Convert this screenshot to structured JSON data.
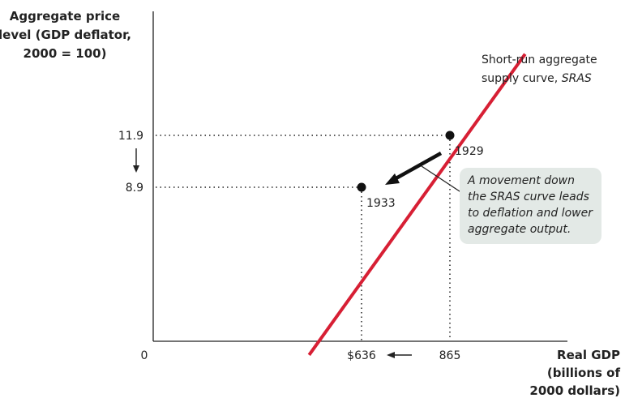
{
  "chart_data": {
    "type": "line",
    "ylabel_lines": [
      "Aggregate price",
      "level (GDP deflator,",
      "2000 = 100)"
    ],
    "xlabel_lines": [
      "Real GDP",
      "(billions of",
      "2000 dollars)"
    ],
    "origin_label": "0",
    "series": [
      {
        "name_lines": [
          "Short-run aggregate",
          "supply curve, ",
          "SRAS"
        ],
        "color": "#d71f34",
        "x": [
          500,
          1060
        ],
        "y": [
          -0.8,
          16.6
        ]
      }
    ],
    "points": [
      {
        "label": "1929",
        "x": 865,
        "y": 11.9
      },
      {
        "label": "1933",
        "x": 636,
        "y": 8.9
      }
    ],
    "x_ticks": [
      "$636",
      "865"
    ],
    "y_ticks": [
      "11.9",
      "8.9"
    ],
    "xlim": [
      0,
      1100
    ],
    "ylim": [
      -7.5,
      18.5
    ],
    "annotation_lines": [
      "A movement down",
      "the SRAS curve leads",
      "to deflation and lower",
      "aggregate output."
    ],
    "grid": false,
    "colors": {
      "curve": "#d71f34",
      "callout_bg": "#e3e9e6",
      "axis": "#222222"
    }
  }
}
